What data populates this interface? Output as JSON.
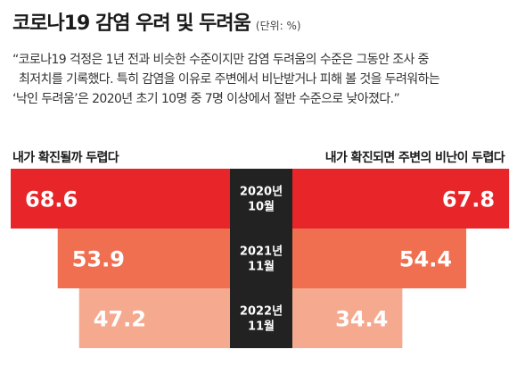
{
  "header": {
    "title": "코로나19 감염 우려 및 두려움",
    "unit": "(단위: %)"
  },
  "quote": {
    "lines": [
      "“코로나19 걱정은 1년 전과 비슷한 수준이지만 감염 두려움의 수준은 그동안 조사 중",
      "최저치를 기록했다. 특히 감염을 이유로 주변에서 비난받거나 피해 볼 것을 두려워하는",
      "‘낙인 두려움’은 2020년 초기 10명 중 7명 이상에서 절반 수준으로 낮아졌다.”"
    ]
  },
  "chart_data": {
    "type": "bar",
    "layout": "butterfly",
    "categories": [
      [
        "2020년",
        "10월"
      ],
      [
        "2021년",
        "11월"
      ],
      [
        "2022년",
        "11월"
      ]
    ],
    "series": [
      {
        "name": "내가 확진될까 두렵다",
        "values": [
          68.6,
          53.9,
          47.2
        ],
        "side": "left"
      },
      {
        "name": "내가 확진되면 주변의 비난이 두렵다",
        "values": [
          67.8,
          54.4,
          34.4
        ],
        "side": "right"
      }
    ],
    "colors": {
      "rows": [
        "#e8262a",
        "#ef6f50",
        "#f5a98f"
      ],
      "center": "#222222"
    }
  }
}
